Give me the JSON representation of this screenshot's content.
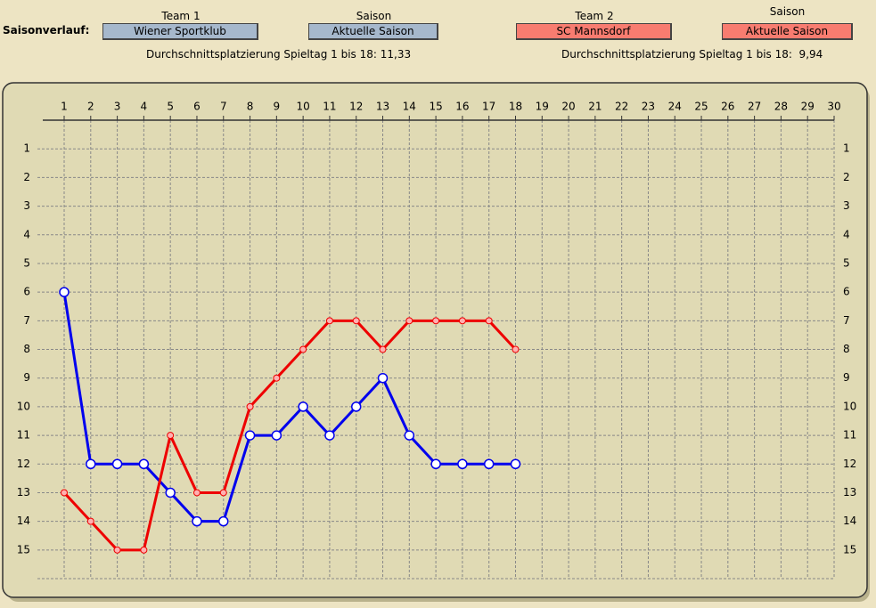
{
  "header": {
    "label": "Saisonverlauf:",
    "team1_label": "Team 1",
    "season1_label": "Saison",
    "season1_value": "Aktuelle Saison",
    "team2_label": "Team 2",
    "season2_label": "Saison",
    "season2_value": "Aktuelle Saison",
    "avg1": "Durchschnittsplatzierung Spieltag 1 bis 18: 11,33",
    "avg2": "Durchschnittsplatzierung Spieltag 1 bis 18:  9,94"
  },
  "chart_data": {
    "type": "line",
    "x": [
      1,
      2,
      3,
      4,
      5,
      6,
      7,
      8,
      9,
      10,
      11,
      12,
      13,
      14,
      15,
      16,
      17,
      18
    ],
    "series": [
      {
        "name": "Wiener Sportklub",
        "color": "#0000ee",
        "values": [
          6,
          12,
          12,
          12,
          13,
          14,
          14,
          11,
          11,
          10,
          11,
          10,
          9,
          11,
          12,
          12,
          12,
          12
        ]
      },
      {
        "name": "SC Mannsdorf",
        "color": "#ee0000",
        "values": [
          13,
          14,
          15,
          15,
          11,
          13,
          13,
          10,
          9,
          8,
          7,
          7,
          8,
          7,
          7,
          7,
          7,
          8
        ]
      }
    ],
    "xlim": [
      1,
      30
    ],
    "xticks": [
      1,
      2,
      3,
      4,
      5,
      6,
      7,
      8,
      9,
      10,
      11,
      12,
      13,
      14,
      15,
      16,
      17,
      18,
      19,
      20,
      21,
      22,
      23,
      24,
      25,
      26,
      27,
      28,
      29,
      30
    ],
    "ylim": [
      16,
      0
    ],
    "yticks": [
      1,
      2,
      3,
      4,
      5,
      6,
      7,
      8,
      9,
      10,
      11,
      12,
      13,
      14,
      15
    ],
    "grid": true
  }
}
